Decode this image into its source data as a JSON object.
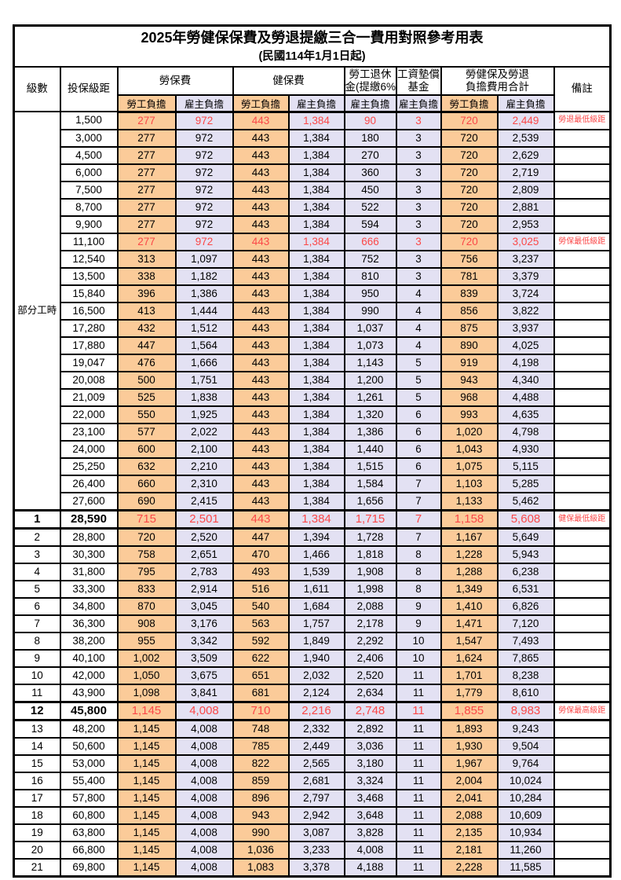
{
  "title": "2025年勞健保保費及勞退提繳三合一費用對照參考用表",
  "subtitle": "(民國114年1月1日起)",
  "columns": {
    "level": "級數",
    "bracket": "投保級距",
    "labor_fee": "勞保費",
    "health_fee": "健保費",
    "pension_line1": "勞工退休",
    "pension_line2": "金(提繳6%)",
    "wage_fund_line1": "工資墊償",
    "wage_fund_line2": "基金",
    "total_line1": "勞健保及勞退",
    "total_line2": "負擔費用合計",
    "note": "備註",
    "employee_burden": "勞工負擔",
    "employer_burden": "雇主負擔"
  },
  "part_time_label": "部分工時",
  "colors": {
    "employee_bg": "#FBCB99",
    "employer_bg": "#E3E1F3",
    "highlight_text": "#FB4848",
    "border": "#000000"
  },
  "rows": [
    {
      "level": "",
      "bracket": "1,500",
      "values": [
        "277",
        "972",
        "443",
        "1,384",
        "90",
        "3",
        "720",
        "2,449"
      ],
      "note": "勞退最低級距",
      "style": "red"
    },
    {
      "level": "",
      "bracket": "3,000",
      "values": [
        "277",
        "972",
        "443",
        "1,384",
        "180",
        "3",
        "720",
        "2,539"
      ],
      "note": "",
      "style": ""
    },
    {
      "level": "",
      "bracket": "4,500",
      "values": [
        "277",
        "972",
        "443",
        "1,384",
        "270",
        "3",
        "720",
        "2,629"
      ],
      "note": "",
      "style": ""
    },
    {
      "level": "",
      "bracket": "6,000",
      "values": [
        "277",
        "972",
        "443",
        "1,384",
        "360",
        "3",
        "720",
        "2,719"
      ],
      "note": "",
      "style": ""
    },
    {
      "level": "",
      "bracket": "7,500",
      "values": [
        "277",
        "972",
        "443",
        "1,384",
        "450",
        "3",
        "720",
        "2,809"
      ],
      "note": "",
      "style": ""
    },
    {
      "level": "",
      "bracket": "8,700",
      "values": [
        "277",
        "972",
        "443",
        "1,384",
        "522",
        "3",
        "720",
        "2,881"
      ],
      "note": "",
      "style": ""
    },
    {
      "level": "",
      "bracket": "9,900",
      "values": [
        "277",
        "972",
        "443",
        "1,384",
        "594",
        "3",
        "720",
        "2,953"
      ],
      "note": "",
      "style": ""
    },
    {
      "level": "",
      "bracket": "11,100",
      "values": [
        "277",
        "972",
        "443",
        "1,384",
        "666",
        "3",
        "720",
        "3,025"
      ],
      "note": "勞保最低級距",
      "style": "red"
    },
    {
      "level": "",
      "bracket": "12,540",
      "values": [
        "313",
        "1,097",
        "443",
        "1,384",
        "752",
        "3",
        "756",
        "3,237"
      ],
      "note": "",
      "style": ""
    },
    {
      "level": "",
      "bracket": "13,500",
      "values": [
        "338",
        "1,182",
        "443",
        "1,384",
        "810",
        "3",
        "781",
        "3,379"
      ],
      "note": "",
      "style": ""
    },
    {
      "level": "",
      "bracket": "15,840",
      "values": [
        "396",
        "1,386",
        "443",
        "1,384",
        "950",
        "4",
        "839",
        "3,724"
      ],
      "note": "",
      "style": ""
    },
    {
      "level": "",
      "bracket": "16,500",
      "values": [
        "413",
        "1,444",
        "443",
        "1,384",
        "990",
        "4",
        "856",
        "3,822"
      ],
      "note": "",
      "style": ""
    },
    {
      "level": "",
      "bracket": "17,280",
      "values": [
        "432",
        "1,512",
        "443",
        "1,384",
        "1,037",
        "4",
        "875",
        "3,937"
      ],
      "note": "",
      "style": ""
    },
    {
      "level": "",
      "bracket": "17,880",
      "values": [
        "447",
        "1,564",
        "443",
        "1,384",
        "1,073",
        "4",
        "890",
        "4,025"
      ],
      "note": "",
      "style": ""
    },
    {
      "level": "",
      "bracket": "19,047",
      "values": [
        "476",
        "1,666",
        "443",
        "1,384",
        "1,143",
        "5",
        "919",
        "4,198"
      ],
      "note": "",
      "style": ""
    },
    {
      "level": "",
      "bracket": "20,008",
      "values": [
        "500",
        "1,751",
        "443",
        "1,384",
        "1,200",
        "5",
        "943",
        "4,340"
      ],
      "note": "",
      "style": ""
    },
    {
      "level": "",
      "bracket": "21,009",
      "values": [
        "525",
        "1,838",
        "443",
        "1,384",
        "1,261",
        "5",
        "968",
        "4,488"
      ],
      "note": "",
      "style": ""
    },
    {
      "level": "",
      "bracket": "22,000",
      "values": [
        "550",
        "1,925",
        "443",
        "1,384",
        "1,320",
        "6",
        "993",
        "4,635"
      ],
      "note": "",
      "style": ""
    },
    {
      "level": "",
      "bracket": "23,100",
      "values": [
        "577",
        "2,022",
        "443",
        "1,384",
        "1,386",
        "6",
        "1,020",
        "4,798"
      ],
      "note": "",
      "style": ""
    },
    {
      "level": "",
      "bracket": "24,000",
      "values": [
        "600",
        "2,100",
        "443",
        "1,384",
        "1,440",
        "6",
        "1,043",
        "4,930"
      ],
      "note": "",
      "style": ""
    },
    {
      "level": "",
      "bracket": "25,250",
      "values": [
        "632",
        "2,210",
        "443",
        "1,384",
        "1,515",
        "6",
        "1,075",
        "5,115"
      ],
      "note": "",
      "style": ""
    },
    {
      "level": "",
      "bracket": "26,400",
      "values": [
        "660",
        "2,310",
        "443",
        "1,384",
        "1,584",
        "7",
        "1,103",
        "5,285"
      ],
      "note": "",
      "style": ""
    },
    {
      "level": "",
      "bracket": "27,600",
      "values": [
        "690",
        "2,415",
        "443",
        "1,384",
        "1,656",
        "7",
        "1,133",
        "5,462"
      ],
      "note": "",
      "style": ""
    },
    {
      "level": "1",
      "bracket": "28,590",
      "values": [
        "715",
        "2,501",
        "443",
        "1,384",
        "1,715",
        "7",
        "1,158",
        "5,608"
      ],
      "note": "健保最低級距",
      "style": "em"
    },
    {
      "level": "2",
      "bracket": "28,800",
      "values": [
        "720",
        "2,520",
        "447",
        "1,394",
        "1,728",
        "7",
        "1,167",
        "5,649"
      ],
      "note": "",
      "style": ""
    },
    {
      "level": "3",
      "bracket": "30,300",
      "values": [
        "758",
        "2,651",
        "470",
        "1,466",
        "1,818",
        "8",
        "1,228",
        "5,943"
      ],
      "note": "",
      "style": ""
    },
    {
      "level": "4",
      "bracket": "31,800",
      "values": [
        "795",
        "2,783",
        "493",
        "1,539",
        "1,908",
        "8",
        "1,288",
        "6,238"
      ],
      "note": "",
      "style": ""
    },
    {
      "level": "5",
      "bracket": "33,300",
      "values": [
        "833",
        "2,914",
        "516",
        "1,611",
        "1,998",
        "8",
        "1,349",
        "6,531"
      ],
      "note": "",
      "style": ""
    },
    {
      "level": "6",
      "bracket": "34,800",
      "values": [
        "870",
        "3,045",
        "540",
        "1,684",
        "2,088",
        "9",
        "1,410",
        "6,826"
      ],
      "note": "",
      "style": ""
    },
    {
      "level": "7",
      "bracket": "36,300",
      "values": [
        "908",
        "3,176",
        "563",
        "1,757",
        "2,178",
        "9",
        "1,471",
        "7,120"
      ],
      "note": "",
      "style": ""
    },
    {
      "level": "8",
      "bracket": "38,200",
      "values": [
        "955",
        "3,342",
        "592",
        "1,849",
        "2,292",
        "10",
        "1,547",
        "7,493"
      ],
      "note": "",
      "style": ""
    },
    {
      "level": "9",
      "bracket": "40,100",
      "values": [
        "1,002",
        "3,509",
        "622",
        "1,940",
        "2,406",
        "10",
        "1,624",
        "7,865"
      ],
      "note": "",
      "style": ""
    },
    {
      "level": "10",
      "bracket": "42,000",
      "values": [
        "1,050",
        "3,675",
        "651",
        "2,032",
        "2,520",
        "11",
        "1,701",
        "8,238"
      ],
      "note": "",
      "style": ""
    },
    {
      "level": "11",
      "bracket": "43,900",
      "values": [
        "1,098",
        "3,841",
        "681",
        "2,124",
        "2,634",
        "11",
        "1,779",
        "8,610"
      ],
      "note": "",
      "style": ""
    },
    {
      "level": "12",
      "bracket": "45,800",
      "values": [
        "1,145",
        "4,008",
        "710",
        "2,216",
        "2,748",
        "11",
        "1,855",
        "8,983"
      ],
      "note": "勞保最高級距",
      "style": "em"
    },
    {
      "level": "13",
      "bracket": "48,200",
      "values": [
        "1,145",
        "4,008",
        "748",
        "2,332",
        "2,892",
        "11",
        "1,893",
        "9,243"
      ],
      "note": "",
      "style": ""
    },
    {
      "level": "14",
      "bracket": "50,600",
      "values": [
        "1,145",
        "4,008",
        "785",
        "2,449",
        "3,036",
        "11",
        "1,930",
        "9,504"
      ],
      "note": "",
      "style": ""
    },
    {
      "level": "15",
      "bracket": "53,000",
      "values": [
        "1,145",
        "4,008",
        "822",
        "2,565",
        "3,180",
        "11",
        "1,967",
        "9,764"
      ],
      "note": "",
      "style": ""
    },
    {
      "level": "16",
      "bracket": "55,400",
      "values": [
        "1,145",
        "4,008",
        "859",
        "2,681",
        "3,324",
        "11",
        "2,004",
        "10,024"
      ],
      "note": "",
      "style": ""
    },
    {
      "level": "17",
      "bracket": "57,800",
      "values": [
        "1,145",
        "4,008",
        "896",
        "2,797",
        "3,468",
        "11",
        "2,041",
        "10,284"
      ],
      "note": "",
      "style": ""
    },
    {
      "level": "18",
      "bracket": "60,800",
      "values": [
        "1,145",
        "4,008",
        "943",
        "2,942",
        "3,648",
        "11",
        "2,088",
        "10,609"
      ],
      "note": "",
      "style": ""
    },
    {
      "level": "19",
      "bracket": "63,800",
      "values": [
        "1,145",
        "4,008",
        "990",
        "3,087",
        "3,828",
        "11",
        "2,135",
        "10,934"
      ],
      "note": "",
      "style": ""
    },
    {
      "level": "20",
      "bracket": "66,800",
      "values": [
        "1,145",
        "4,008",
        "1,036",
        "3,233",
        "4,008",
        "11",
        "2,181",
        "11,260"
      ],
      "note": "",
      "style": ""
    },
    {
      "level": "21",
      "bracket": "69,800",
      "values": [
        "1,145",
        "4,008",
        "1,083",
        "3,378",
        "4,188",
        "11",
        "2,228",
        "11,585"
      ],
      "note": "",
      "style": ""
    }
  ]
}
